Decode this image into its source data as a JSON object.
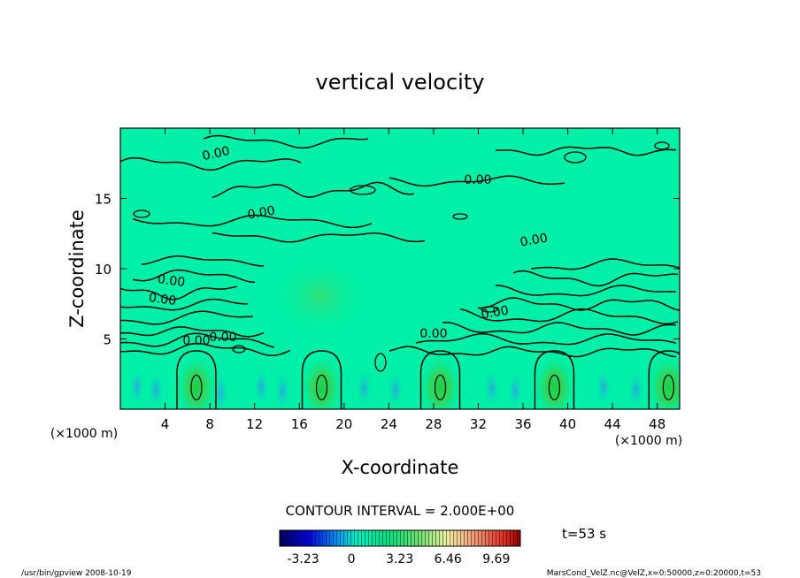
{
  "chart_data": {
    "type": "heatmap",
    "title": "vertical velocity",
    "xlabel": "X-coordinate",
    "ylabel": "Z-coordinate",
    "x_unit": "(×1000 m)",
    "y_unit": "(×1000 m)",
    "xlim": [
      0,
      50
    ],
    "ylim": [
      0,
      20
    ],
    "x_ticks": [
      4,
      8,
      12,
      16,
      20,
      24,
      28,
      32,
      36,
      40,
      44,
      48
    ],
    "y_ticks": [
      5,
      10,
      15
    ],
    "contour_interval_text": "CONTOUR INTERVAL = 2.000E+00",
    "time_label": "t=53 s",
    "colorbar": {
      "min": -4.8,
      "max": 11.3,
      "tick_labels": [
        "-3.23",
        "0",
        "3.23",
        "6.46",
        "9.69"
      ],
      "tick_values": [
        -3.23,
        0,
        3.23,
        6.46,
        9.69
      ]
    },
    "contour_labels": [
      "0.00",
      "0.00",
      "0.00",
      "0.00",
      "0.00",
      "0.00",
      "0.00",
      "0.00",
      "0.00",
      "0.00"
    ],
    "updraft_centers_x": [
      6.8,
      18.0,
      28.6,
      38.8,
      49.0
    ],
    "updraft_center_z": 1.8,
    "background_color": "#00f0a8",
    "footer_left": "/usr/bin/gpview   2008-10-19",
    "footer_right": "MarsCond_VelZ.nc@VelZ,x=0:50000,z=0:20000,t=53"
  }
}
